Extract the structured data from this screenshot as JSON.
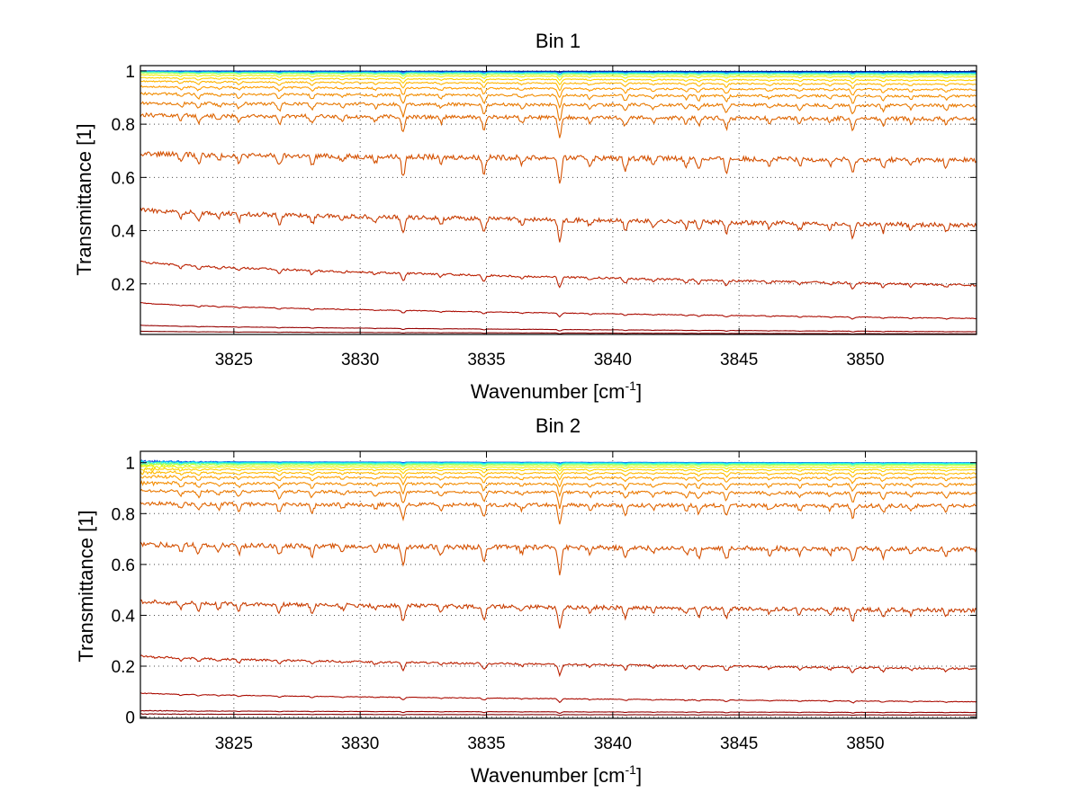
{
  "chart_data": [
    {
      "type": "line",
      "title": "Bin 1",
      "xlabel": "Wavenumber [cm",
      "xlabel_sup": "-1",
      "xlabel_end": "]",
      "ylabel": "Transmittance [1]",
      "xlim": [
        3821.3,
        3854.4
      ],
      "ylim": [
        0.01,
        1.02
      ],
      "xticks": [
        3825,
        3830,
        3835,
        3840,
        3845,
        3850
      ],
      "xtick_labels": [
        "3825",
        "3830",
        "3835",
        "3840",
        "3845",
        "3850"
      ],
      "yticks": [
        0.2,
        0.4,
        0.6,
        0.8,
        1.0
      ],
      "ytick_labels": [
        "0.2",
        "0.4",
        "0.6",
        "0.8",
        "1"
      ],
      "grid": true,
      "noise": 0,
      "series": [
        {
          "color": "#00005a",
          "start": 1.0,
          "end": 0.998,
          "depth": 0.001
        },
        {
          "color": "#0034c8",
          "start": 1.0,
          "end": 0.996,
          "depth": 0.002
        },
        {
          "color": "#00a0ff",
          "start": 0.998,
          "end": 0.993,
          "depth": 0.004
        },
        {
          "color": "#36ffc8",
          "start": 0.996,
          "end": 0.99,
          "depth": 0.006
        },
        {
          "color": "#a8ff54",
          "start": 0.993,
          "end": 0.985,
          "depth": 0.008
        },
        {
          "color": "#f0f000",
          "start": 0.985,
          "end": 0.978,
          "depth": 0.011
        },
        {
          "color": "#ffd200",
          "start": 0.975,
          "end": 0.965,
          "depth": 0.015
        },
        {
          "color": "#ffb400",
          "start": 0.962,
          "end": 0.95,
          "depth": 0.02
        },
        {
          "color": "#ff9b00",
          "start": 0.942,
          "end": 0.93,
          "depth": 0.027
        },
        {
          "color": "#f28c00",
          "start": 0.915,
          "end": 0.905,
          "depth": 0.035
        },
        {
          "color": "#e87800",
          "start": 0.88,
          "end": 0.87,
          "depth": 0.045
        },
        {
          "color": "#de6400",
          "start": 0.835,
          "end": 0.82,
          "depth": 0.06
        },
        {
          "color": "#d45000",
          "start": 0.69,
          "end": 0.665,
          "depth": 0.075
        },
        {
          "color": "#c83c00",
          "start": 0.48,
          "end": 0.42,
          "depth": 0.065
        },
        {
          "color": "#bb2000",
          "start": 0.285,
          "end": 0.195,
          "depth": 0.03
        },
        {
          "color": "#aa0a00",
          "start": 0.13,
          "end": 0.07,
          "depth": 0.01
        },
        {
          "color": "#960000",
          "start": 0.045,
          "end": 0.02,
          "depth": 0.004
        },
        {
          "color": "#800000",
          "start": 0.022,
          "end": 0.012,
          "depth": 0.002
        }
      ]
    },
    {
      "type": "line",
      "title": "Bin 2",
      "xlabel": "Wavenumber [cm",
      "xlabel_sup": "-1",
      "xlabel_end": "]",
      "ylabel": "Transmittance [1]",
      "xlim": [
        3821.3,
        3854.4
      ],
      "ylim": [
        -0.005,
        1.045
      ],
      "xticks": [
        3825,
        3830,
        3835,
        3840,
        3845,
        3850
      ],
      "xtick_labels": [
        "3825",
        "3830",
        "3835",
        "3840",
        "3845",
        "3850"
      ],
      "yticks": [
        0,
        0.2,
        0.4,
        0.6,
        0.8,
        1.0
      ],
      "ytick_labels": [
        "0",
        "0.2",
        "0.4",
        "0.6",
        "0.8",
        "1"
      ],
      "grid": true,
      "noise": 1,
      "series": [
        {
          "color": "#0040e0",
          "start": 1.005,
          "end": 1.0,
          "depth": 0.002
        },
        {
          "color": "#00b4ff",
          "start": 1.003,
          "end": 0.999,
          "depth": 0.003
        },
        {
          "color": "#20ffe0",
          "start": 1.0,
          "end": 0.997,
          "depth": 0.004
        },
        {
          "color": "#70ff90",
          "start": 0.997,
          "end": 0.994,
          "depth": 0.006
        },
        {
          "color": "#c8ff38",
          "start": 0.992,
          "end": 0.99,
          "depth": 0.008
        },
        {
          "color": "#f0f000",
          "start": 0.985,
          "end": 0.982,
          "depth": 0.011
        },
        {
          "color": "#ffd200",
          "start": 0.975,
          "end": 0.972,
          "depth": 0.015
        },
        {
          "color": "#ffba00",
          "start": 0.962,
          "end": 0.958,
          "depth": 0.02
        },
        {
          "color": "#ffa000",
          "start": 0.945,
          "end": 0.94,
          "depth": 0.027
        },
        {
          "color": "#f48c00",
          "start": 0.92,
          "end": 0.915,
          "depth": 0.035
        },
        {
          "color": "#ea7800",
          "start": 0.89,
          "end": 0.88,
          "depth": 0.045
        },
        {
          "color": "#e06400",
          "start": 0.84,
          "end": 0.83,
          "depth": 0.06
        },
        {
          "color": "#d45000",
          "start": 0.68,
          "end": 0.66,
          "depth": 0.075
        },
        {
          "color": "#c83c00",
          "start": 0.455,
          "end": 0.42,
          "depth": 0.065
        },
        {
          "color": "#bb2000",
          "start": 0.24,
          "end": 0.19,
          "depth": 0.03
        },
        {
          "color": "#aa0a00",
          "start": 0.095,
          "end": 0.06,
          "depth": 0.01
        },
        {
          "color": "#960000",
          "start": 0.025,
          "end": 0.018,
          "depth": 0.004
        },
        {
          "color": "#800000",
          "start": 0.012,
          "end": 0.008,
          "depth": 0.002
        }
      ]
    }
  ]
}
